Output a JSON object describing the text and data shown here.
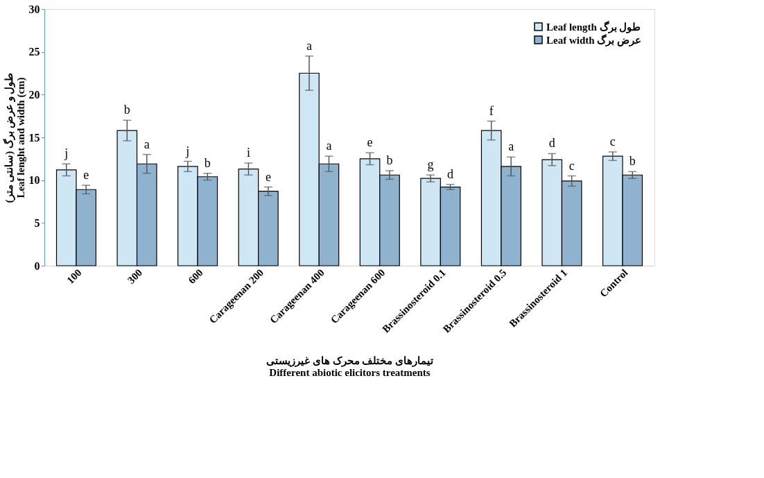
{
  "chart_data": {
    "type": "bar",
    "ylabel": "طول و عرض برگ (سانتی متر)\nLeaf lenght and width (cm)",
    "xlabel": "تیمارهای مختلف محرک های غیرزیستی\nDifferent abiotic elicitors treatments",
    "categories": [
      "100",
      "300",
      "600",
      "Carageenan 200",
      "Carageenan 400",
      "Carageenan 600",
      "Brassinosteroid 0.1",
      "Brassinosteroid 0.5",
      "Brassinosteroid 1",
      "Control"
    ],
    "series": [
      {
        "name": "Leaf length طول برگ",
        "color": "#cfe6f5",
        "values": [
          11.2,
          15.8,
          11.6,
          11.3,
          22.5,
          12.5,
          10.2,
          15.8,
          12.4,
          12.8
        ],
        "errors": [
          0.7,
          1.2,
          0.6,
          0.7,
          2.0,
          0.7,
          0.4,
          1.1,
          0.7,
          0.5
        ],
        "value_labels": [
          "j",
          "b",
          "j",
          "i",
          "a",
          "e",
          "g",
          "f",
          "d",
          "c"
        ]
      },
      {
        "name": "Leaf width عرض برگ",
        "color": "#8fb3cf",
        "values": [
          8.9,
          11.9,
          10.4,
          8.7,
          11.9,
          10.6,
          9.2,
          11.6,
          9.9,
          10.6
        ],
        "errors": [
          0.5,
          1.1,
          0.4,
          0.5,
          0.9,
          0.5,
          0.3,
          1.1,
          0.6,
          0.4
        ],
        "value_labels": [
          "e",
          "a",
          "b",
          "e",
          "a",
          "b",
          "d",
          "a",
          "c",
          "b"
        ]
      }
    ],
    "ylim": [
      0,
      30
    ],
    "yticks": [
      0,
      5,
      10,
      15,
      20,
      25,
      30
    ],
    "grid": false,
    "legend": "top right"
  }
}
